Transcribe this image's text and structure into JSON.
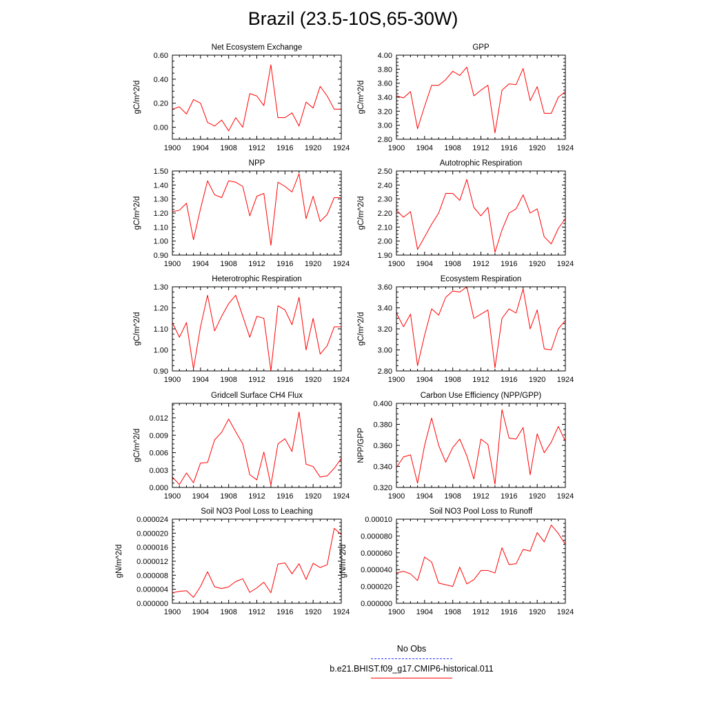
{
  "title": "Brazil (23.5-10S,65-30W)",
  "legend": {
    "obs_label": "No Obs",
    "obs_color": "#3333ff",
    "run_label": "b.e21.BHIST.f09_g17.CMIP6-historical.011",
    "run_color": "#ff0000"
  },
  "chart_data": [
    {
      "type": "line",
      "title": "Net Ecosystem Exchange",
      "ylabel": "gC/m^2/d",
      "xlim": [
        1900,
        1924
      ],
      "ylim": [
        -0.1,
        0.6
      ],
      "yticks": [
        "0.00",
        "0.20",
        "0.40",
        "0.60"
      ],
      "xticks": [
        "1900",
        "1904",
        "1908",
        "1912",
        "1916",
        "1920",
        "1924"
      ],
      "x": [
        1900,
        1901,
        1902,
        1903,
        1904,
        1905,
        1906,
        1907,
        1908,
        1909,
        1910,
        1911,
        1912,
        1913,
        1914,
        1915,
        1916,
        1917,
        1918,
        1919,
        1920,
        1921,
        1922,
        1923,
        1924
      ],
      "series": [
        {
          "values": [
            0.15,
            0.17,
            0.11,
            0.23,
            0.2,
            0.04,
            0.01,
            0.06,
            -0.03,
            0.08,
            0.0,
            0.28,
            0.26,
            0.18,
            0.52,
            0.08,
            0.08,
            0.12,
            0.01,
            0.21,
            0.16,
            0.34,
            0.26,
            0.15,
            0.15
          ]
        }
      ]
    },
    {
      "type": "line",
      "title": "GPP",
      "ylabel": "gC/m^2/d",
      "xlim": [
        1900,
        1924
      ],
      "ylim": [
        2.8,
        4.0
      ],
      "yticks": [
        "2.80",
        "3.00",
        "3.20",
        "3.40",
        "3.60",
        "3.80",
        "4.00"
      ],
      "xticks": [
        "1900",
        "1904",
        "1908",
        "1912",
        "1916",
        "1920",
        "1924"
      ],
      "x": [
        1900,
        1901,
        1902,
        1903,
        1904,
        1905,
        1906,
        1907,
        1908,
        1909,
        1910,
        1911,
        1912,
        1913,
        1914,
        1915,
        1916,
        1917,
        1918,
        1919,
        1920,
        1921,
        1922,
        1923,
        1924
      ],
      "series": [
        {
          "values": [
            3.42,
            3.39,
            3.48,
            2.95,
            3.27,
            3.57,
            3.57,
            3.65,
            3.77,
            3.71,
            3.83,
            3.42,
            3.5,
            3.57,
            2.89,
            3.5,
            3.59,
            3.58,
            3.81,
            3.35,
            3.55,
            3.17,
            3.17,
            3.4,
            3.48
          ]
        }
      ]
    },
    {
      "type": "line",
      "title": "NPP",
      "ylabel": "gC/m^2/d",
      "xlim": [
        1900,
        1924
      ],
      "ylim": [
        0.9,
        1.5
      ],
      "yticks": [
        "0.90",
        "1.00",
        "1.10",
        "1.20",
        "1.30",
        "1.40",
        "1.50"
      ],
      "xticks": [
        "1900",
        "1904",
        "1908",
        "1912",
        "1916",
        "1920",
        "1924"
      ],
      "x": [
        1900,
        1901,
        1902,
        1903,
        1904,
        1905,
        1906,
        1907,
        1908,
        1909,
        1910,
        1911,
        1912,
        1913,
        1914,
        1915,
        1916,
        1917,
        1918,
        1919,
        1920,
        1921,
        1922,
        1923,
        1924
      ],
      "series": [
        {
          "values": [
            1.21,
            1.22,
            1.27,
            1.01,
            1.23,
            1.43,
            1.33,
            1.31,
            1.43,
            1.42,
            1.39,
            1.18,
            1.32,
            1.34,
            0.97,
            1.42,
            1.39,
            1.35,
            1.48,
            1.16,
            1.32,
            1.14,
            1.19,
            1.31,
            1.31
          ]
        }
      ]
    },
    {
      "type": "line",
      "title": "Autotrophic Respiration",
      "ylabel": "gC/m^2/d",
      "xlim": [
        1900,
        1924
      ],
      "ylim": [
        1.9,
        2.5
      ],
      "yticks": [
        "1.90",
        "2.00",
        "2.10",
        "2.20",
        "2.30",
        "2.40",
        "2.50"
      ],
      "xticks": [
        "1900",
        "1904",
        "1908",
        "1912",
        "1916",
        "1920",
        "1924"
      ],
      "x": [
        1900,
        1901,
        1902,
        1903,
        1904,
        1905,
        1906,
        1907,
        1908,
        1909,
        1910,
        1911,
        1912,
        1913,
        1914,
        1915,
        1916,
        1917,
        1918,
        1919,
        1920,
        1921,
        1922,
        1923,
        1924
      ],
      "series": [
        {
          "values": [
            2.22,
            2.17,
            2.21,
            1.94,
            2.03,
            2.12,
            2.2,
            2.34,
            2.34,
            2.29,
            2.44,
            2.24,
            2.18,
            2.24,
            1.92,
            2.08,
            2.2,
            2.23,
            2.33,
            2.2,
            2.23,
            2.03,
            1.98,
            2.09,
            2.16
          ]
        }
      ]
    },
    {
      "type": "line",
      "title": "Heterotrophic Respiration",
      "ylabel": "gC/m^2/d",
      "xlim": [
        1900,
        1924
      ],
      "ylim": [
        0.9,
        1.3
      ],
      "yticks": [
        "0.90",
        "1.00",
        "1.10",
        "1.20",
        "1.30"
      ],
      "xticks": [
        "1900",
        "1904",
        "1908",
        "1912",
        "1916",
        "1920",
        "1924"
      ],
      "x": [
        1900,
        1901,
        1902,
        1903,
        1904,
        1905,
        1906,
        1907,
        1908,
        1909,
        1910,
        1911,
        1912,
        1913,
        1914,
        1915,
        1916,
        1917,
        1918,
        1919,
        1920,
        1921,
        1922,
        1923,
        1924
      ],
      "series": [
        {
          "values": [
            1.13,
            1.06,
            1.13,
            0.91,
            1.11,
            1.26,
            1.09,
            1.16,
            1.22,
            1.26,
            1.16,
            1.06,
            1.16,
            1.15,
            0.9,
            1.21,
            1.19,
            1.12,
            1.25,
            1.0,
            1.15,
            0.98,
            1.02,
            1.11,
            1.11
          ]
        }
      ]
    },
    {
      "type": "line",
      "title": "Ecosystem Respiration",
      "ylabel": "gC/m^2/d",
      "xlim": [
        1900,
        1924
      ],
      "ylim": [
        2.8,
        3.6
      ],
      "yticks": [
        "2.80",
        "3.00",
        "3.20",
        "3.40",
        "3.60"
      ],
      "xticks": [
        "1900",
        "1904",
        "1908",
        "1912",
        "1916",
        "1920",
        "1924"
      ],
      "x": [
        1900,
        1901,
        1902,
        1903,
        1904,
        1905,
        1906,
        1907,
        1908,
        1909,
        1910,
        1911,
        1912,
        1913,
        1914,
        1915,
        1916,
        1917,
        1918,
        1919,
        1920,
        1921,
        1922,
        1923,
        1924
      ],
      "series": [
        {
          "values": [
            3.35,
            3.22,
            3.34,
            2.85,
            3.14,
            3.39,
            3.33,
            3.5,
            3.56,
            3.55,
            3.6,
            3.3,
            3.34,
            3.38,
            2.83,
            3.3,
            3.39,
            3.35,
            3.58,
            3.2,
            3.38,
            3.01,
            3.0,
            3.2,
            3.28
          ]
        }
      ]
    },
    {
      "type": "line",
      "title": "Gridcell Surface CH4 Flux",
      "ylabel": "gC/m^2/d",
      "xlim": [
        1900,
        1924
      ],
      "ylim": [
        0.0,
        0.0145
      ],
      "yticks": [
        "0.000",
        "0.003",
        "0.006",
        "0.009",
        "0.012"
      ],
      "xticks": [
        "1900",
        "1904",
        "1908",
        "1912",
        "1916",
        "1920",
        "1924"
      ],
      "x": [
        1900,
        1901,
        1902,
        1903,
        1904,
        1905,
        1906,
        1907,
        1908,
        1909,
        1910,
        1911,
        1912,
        1913,
        1914,
        1915,
        1916,
        1917,
        1918,
        1919,
        1920,
        1921,
        1922,
        1923,
        1924
      ],
      "series": [
        {
          "values": [
            0.0018,
            0.0005,
            0.0025,
            0.0008,
            0.0042,
            0.0043,
            0.0082,
            0.0095,
            0.0118,
            0.0096,
            0.0075,
            0.0022,
            0.0013,
            0.0061,
            0.0004,
            0.0075,
            0.0084,
            0.0062,
            0.013,
            0.004,
            0.0036,
            0.0018,
            0.002,
            0.0033,
            0.005
          ]
        }
      ]
    },
    {
      "type": "line",
      "title": "Carbon Use Efficiency (NPP/GPP)",
      "ylabel": "NPP/GPP",
      "xlim": [
        1900,
        1924
      ],
      "ylim": [
        0.32,
        0.4
      ],
      "yticks": [
        "0.320",
        "0.340",
        "0.360",
        "0.380",
        "0.400"
      ],
      "xticks": [
        "1900",
        "1904",
        "1908",
        "1912",
        "1916",
        "1920",
        "1924"
      ],
      "x": [
        1900,
        1901,
        1902,
        1903,
        1904,
        1905,
        1906,
        1907,
        1908,
        1909,
        1910,
        1911,
        1912,
        1913,
        1914,
        1915,
        1916,
        1917,
        1918,
        1919,
        1920,
        1921,
        1922,
        1923,
        1924
      ],
      "series": [
        {
          "values": [
            0.339,
            0.349,
            0.351,
            0.324,
            0.36,
            0.386,
            0.36,
            0.344,
            0.358,
            0.366,
            0.35,
            0.328,
            0.366,
            0.361,
            0.323,
            0.394,
            0.367,
            0.366,
            0.377,
            0.332,
            0.371,
            0.353,
            0.363,
            0.378,
            0.364
          ]
        }
      ]
    },
    {
      "type": "line",
      "title": "Soil NO3 Pool Loss to Leaching",
      "ylabel": "gN/m^2/d",
      "xlim": [
        1900,
        1924
      ],
      "ylim": [
        0.0,
        2.4e-05
      ],
      "yticks": [
        "0.000000",
        "0.000004",
        "0.000008",
        "0.000012",
        "0.000016",
        "0.000020",
        "0.000024"
      ],
      "xticks": [
        "1900",
        "1904",
        "1908",
        "1912",
        "1916",
        "1920",
        "1924"
      ],
      "x": [
        1900,
        1901,
        1902,
        1903,
        1904,
        1905,
        1906,
        1907,
        1908,
        1909,
        1910,
        1911,
        1912,
        1913,
        1914,
        1915,
        1916,
        1917,
        1918,
        1919,
        1920,
        1921,
        1922,
        1923,
        1924
      ],
      "series": [
        {
          "values": [
            3e-06,
            3.4e-06,
            3.6e-06,
            1.7e-06,
            4.8e-06,
            9e-06,
            4.7e-06,
            4.2e-06,
            4.7e-06,
            6.2e-06,
            7e-06,
            3.1e-06,
            4.4e-06,
            6e-06,
            3e-06,
            1.12e-05,
            1.15e-05,
            8.4e-06,
            1.13e-05,
            6.8e-06,
            1.14e-05,
            1.02e-05,
            1.1e-05,
            2.14e-05,
            1.96e-05
          ]
        }
      ]
    },
    {
      "type": "line",
      "title": "Soil NO3 Pool Loss to Runoff",
      "ylabel": "gN/m^2/d",
      "xlim": [
        1900,
        1924
      ],
      "ylim": [
        0.0,
        0.0001
      ],
      "yticks": [
        "0.000000",
        "0.000020",
        "0.000040",
        "0.000060",
        "0.000080",
        "0.00010"
      ],
      "xticks": [
        "1900",
        "1904",
        "1908",
        "1912",
        "1916",
        "1920",
        "1924"
      ],
      "x": [
        1900,
        1901,
        1902,
        1903,
        1904,
        1905,
        1906,
        1907,
        1908,
        1909,
        1910,
        1911,
        1912,
        1913,
        1914,
        1915,
        1916,
        1917,
        1918,
        1919,
        1920,
        1921,
        1922,
        1923,
        1924
      ],
      "series": [
        {
          "values": [
            3.6e-05,
            3.8e-05,
            3.5e-05,
            2.7e-05,
            5.5e-05,
            4.9e-05,
            2.4e-05,
            2.2e-05,
            2e-05,
            4.3e-05,
            2.3e-05,
            2.8e-05,
            3.9e-05,
            3.9e-05,
            3.6e-05,
            6.6e-05,
            4.6e-05,
            4.7e-05,
            6.4e-05,
            6.2e-05,
            8.4e-05,
            7.3e-05,
            9.3e-05,
            8.3e-05,
            7e-05
          ]
        }
      ]
    }
  ]
}
